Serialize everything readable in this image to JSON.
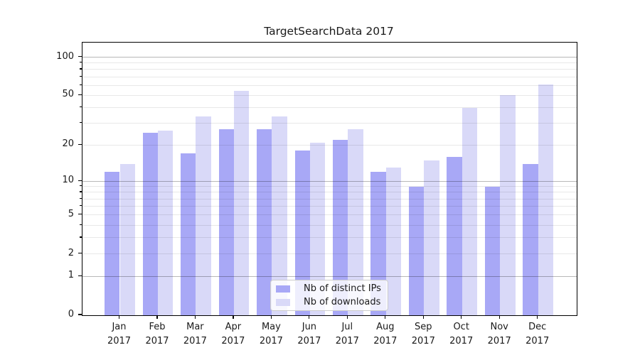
{
  "header": {
    "title": "TargetSearchData 2017"
  },
  "chart_data": {
    "type": "bar",
    "title": "TargetSearchData 2017",
    "categories": [
      "Jan 2017",
      "Feb 2017",
      "Mar 2017",
      "Apr 2017",
      "May 2017",
      "Jun 2017",
      "Jul 2017",
      "Aug 2017",
      "Sep 2017",
      "Oct 2017",
      "Nov 2017",
      "Dec 2017"
    ],
    "series": [
      {
        "name": "Nb of distinct IPs",
        "color": "#a8a8f6",
        "values": [
          12,
          25,
          17,
          27,
          27,
          18,
          22,
          12,
          9,
          16,
          9,
          14
        ]
      },
      {
        "name": "Nb of downloads",
        "color": "#d9d9f8",
        "values": [
          14,
          26,
          34,
          54,
          34,
          21,
          27,
          13,
          15,
          40,
          50,
          61
        ]
      }
    ],
    "xlabel": "",
    "ylabel": "",
    "y_axis": {
      "scale": "log10(1+x)",
      "ylim": [
        0,
        130
      ],
      "tick_values": [
        100,
        50,
        20,
        10,
        5,
        2,
        1,
        0
      ],
      "tick_labels": [
        "100",
        "50",
        "20",
        "10",
        "5",
        "2",
        "1",
        "0"
      ],
      "major_grid_values": [
        1,
        10,
        100
      ],
      "minor_grid_values": [
        2,
        3,
        4,
        5,
        6,
        7,
        8,
        9,
        20,
        30,
        40,
        50,
        60,
        70,
        80,
        90
      ]
    },
    "grid": true,
    "legend_position": "lower center"
  },
  "colors": {
    "bar_distinct_ips": "#a8a8f6",
    "bar_downloads": "#d9d9f8",
    "major_gridline": "#b8b8b8",
    "minor_gridline": "#e8e8e8",
    "spine": "#000000",
    "text": "#1a1a1a",
    "background": "#ffffff"
  }
}
